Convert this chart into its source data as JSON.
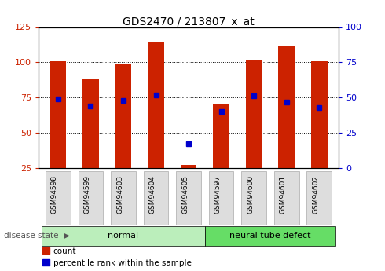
{
  "title": "GDS2470 / 213807_x_at",
  "samples": [
    "GSM94598",
    "GSM94599",
    "GSM94603",
    "GSM94604",
    "GSM94605",
    "GSM94597",
    "GSM94600",
    "GSM94601",
    "GSM94602"
  ],
  "count_values": [
    101,
    88,
    99,
    114,
    27,
    70,
    102,
    112,
    101
  ],
  "percentile_values": [
    49,
    44,
    48,
    52,
    17,
    40,
    51,
    47,
    43
  ],
  "ylim_left": [
    25,
    125
  ],
  "ylim_right": [
    0,
    100
  ],
  "yticks_left": [
    25,
    50,
    75,
    100,
    125
  ],
  "yticks_right": [
    0,
    25,
    50,
    75,
    100
  ],
  "bar_color": "#cc2200",
  "dot_color": "#0000cc",
  "background_color": "#ffffff",
  "grid_color": "#000000",
  "tick_label_color_left": "#cc2200",
  "tick_label_color_right": "#0000cc",
  "bar_width": 0.5,
  "legend_count_label": "count",
  "legend_pct_label": "percentile rank within the sample",
  "disease_state_label": "disease state",
  "group_normal_color": "#bbeebb",
  "group_defect_color": "#66dd66",
  "sample_box_color": "#dddddd",
  "sample_box_edge": "#aaaaaa"
}
